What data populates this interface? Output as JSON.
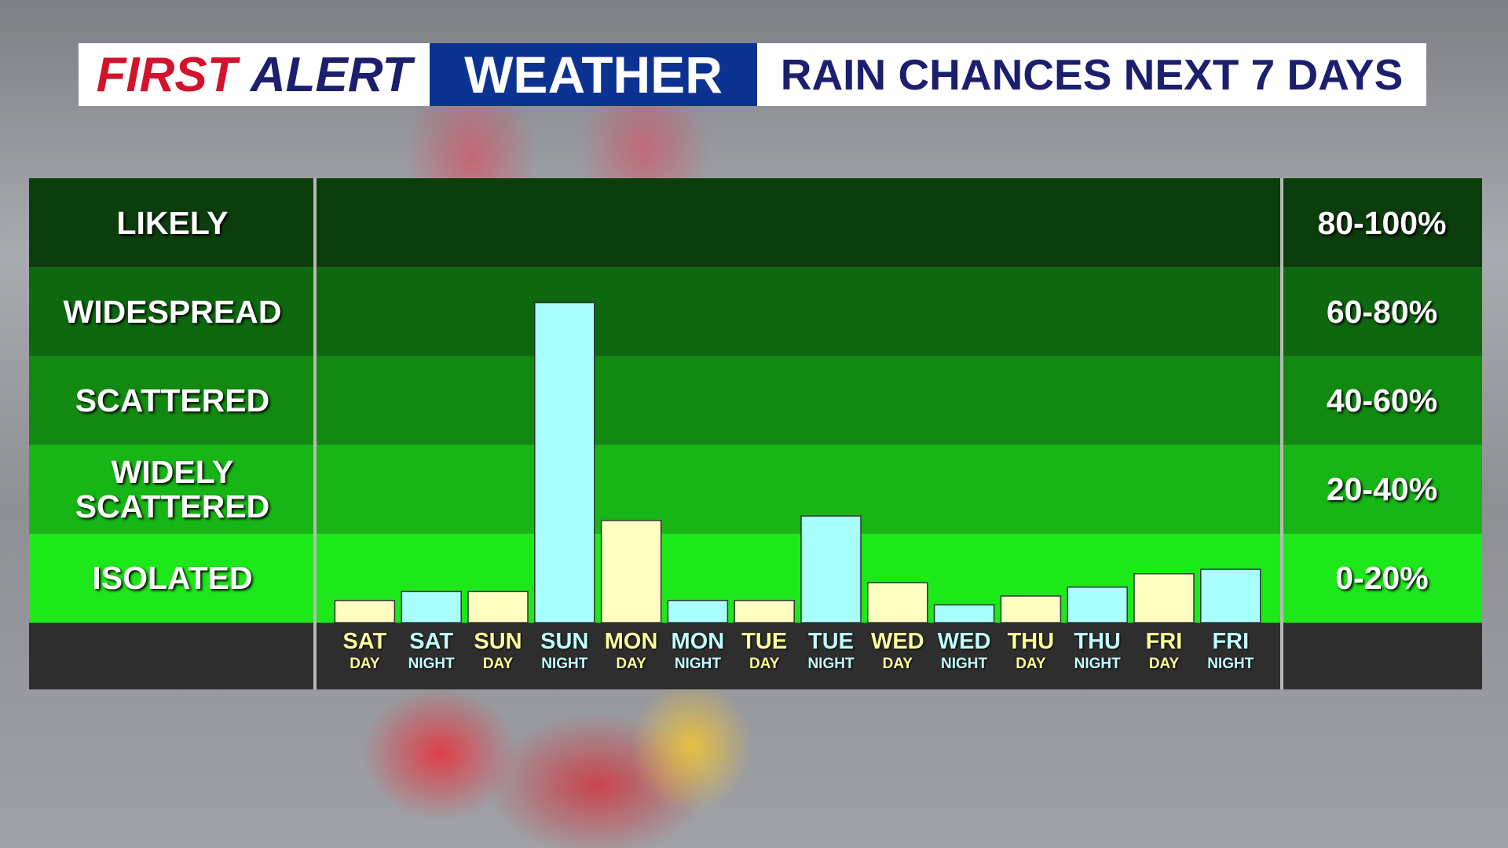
{
  "header": {
    "brand_first": "FIRST",
    "brand_alert": "ALERT",
    "brand_weather": "WEATHER"
  },
  "chart_data": {
    "type": "bar",
    "title": "RAIN CHANCES NEXT 7 DAYS",
    "categories": [
      [
        "SAT",
        "DAY"
      ],
      [
        "SAT",
        "NIGHT"
      ],
      [
        "SUN",
        "DAY"
      ],
      [
        "SUN",
        "NIGHT"
      ],
      [
        "MON",
        "DAY"
      ],
      [
        "MON",
        "NIGHT"
      ],
      [
        "TUE",
        "DAY"
      ],
      [
        "TUE",
        "NIGHT"
      ],
      [
        "WED",
        "DAY"
      ],
      [
        "WED",
        "NIGHT"
      ],
      [
        "THU",
        "DAY"
      ],
      [
        "THU",
        "NIGHT"
      ],
      [
        "FRI",
        "DAY"
      ],
      [
        "FRI",
        "NIGHT"
      ]
    ],
    "values": [
      5,
      7,
      7,
      72,
      23,
      5,
      5,
      24,
      9,
      4,
      6,
      8,
      11,
      12
    ],
    "colors": [
      "#ffffc2",
      "#aaffff",
      "#ffffc2",
      "#aaffff",
      "#ffffc2",
      "#aaffff",
      "#ffffc2",
      "#aaffff",
      "#ffffc2",
      "#aaffff",
      "#ffffc2",
      "#aaffff",
      "#ffffc2",
      "#aaffff"
    ],
    "label_colors": [
      "#ffff99",
      "#bfffff",
      "#ffff99",
      "#bfffff",
      "#ffff99",
      "#bfffff",
      "#ffff99",
      "#bfffff",
      "#ffff99",
      "#bfffff",
      "#ffff99",
      "#bfffff",
      "#ffff99",
      "#bfffff"
    ],
    "ylim": [
      0,
      100
    ],
    "yticks": [
      0,
      20,
      40,
      60,
      80,
      100
    ],
    "bands": [
      {
        "label": "ISOLATED",
        "range": "0-20%",
        "color": "#1de81a"
      },
      {
        "label": "WIDELY SCATTERED",
        "range": "20-40%",
        "color": "#17b616"
      },
      {
        "label": "SCATTERED",
        "range": "40-60%",
        "color": "#128a12"
      },
      {
        "label": "WIDESPREAD",
        "range": "60-80%",
        "color": "#0e680f"
      },
      {
        "label": "LIKELY",
        "range": "80-100%",
        "color": "#0c3d0c"
      }
    ]
  }
}
